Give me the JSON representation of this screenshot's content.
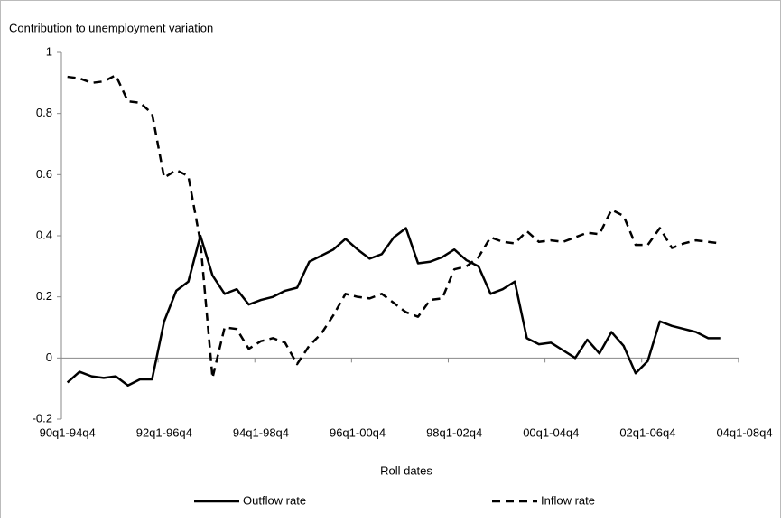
{
  "chart_data": {
    "type": "line",
    "y_label": "Contribution to unemployment variation",
    "x_label": "Roll dates",
    "categories": [
      "90q1-94q4",
      null,
      null,
      null,
      null,
      null,
      null,
      null,
      "92q1-96q4",
      null,
      null,
      null,
      null,
      null,
      null,
      null,
      "94q1-98q4",
      null,
      null,
      null,
      null,
      null,
      null,
      null,
      "96q1-00q4",
      null,
      null,
      null,
      null,
      null,
      null,
      null,
      "98q1-02q4",
      null,
      null,
      null,
      null,
      null,
      null,
      null,
      "00q1-04q4",
      null,
      null,
      null,
      null,
      null,
      null,
      null,
      "02q1-06q4",
      null,
      null,
      null,
      null,
      null,
      null,
      null,
      "04q1-08q4"
    ],
    "series": [
      {
        "name": "Outflow rate",
        "color": "#000000",
        "dash": "solid",
        "values": [
          -0.08,
          -0.045,
          -0.06,
          -0.065,
          -0.06,
          -0.09,
          -0.07,
          -0.07,
          0.12,
          0.22,
          0.25,
          0.4,
          0.27,
          0.21,
          0.225,
          0.175,
          0.19,
          0.2,
          0.22,
          0.23,
          0.315,
          0.335,
          0.355,
          0.39,
          0.355,
          0.325,
          0.34,
          0.395,
          0.425,
          0.31,
          0.315,
          0.33,
          0.355,
          0.32,
          0.3,
          0.21,
          0.225,
          0.25,
          0.065,
          0.045,
          0.05,
          0.025,
          0.0,
          0.06,
          0.015,
          0.085,
          0.04,
          -0.05,
          -0.01,
          0.12,
          0.105,
          0.095,
          0.085,
          0.065,
          0.065,
          null,
          null
        ]
      },
      {
        "name": "Inflow rate",
        "color": "#000000",
        "dash": "dashed",
        "values": [
          0.92,
          0.915,
          0.9,
          0.905,
          0.925,
          0.84,
          0.835,
          0.8,
          0.59,
          0.615,
          0.595,
          0.38,
          -0.065,
          0.1,
          0.095,
          0.03,
          0.055,
          0.065,
          0.05,
          -0.02,
          0.04,
          0.08,
          0.14,
          0.21,
          0.2,
          0.195,
          0.21,
          0.18,
          0.15,
          0.135,
          0.19,
          0.195,
          0.29,
          0.3,
          0.33,
          0.395,
          0.38,
          0.375,
          0.415,
          0.38,
          0.385,
          0.38,
          0.395,
          0.41,
          0.405,
          0.485,
          0.465,
          0.37,
          0.37,
          0.425,
          0.36,
          0.375,
          0.385,
          0.38,
          0.375,
          null,
          null
        ]
      }
    ],
    "ylim": [
      -0.2,
      1
    ],
    "yticks": [
      -0.2,
      0,
      0.2,
      0.4,
      0.6,
      0.8,
      1
    ],
    "grid": false,
    "legend": "bottom"
  }
}
